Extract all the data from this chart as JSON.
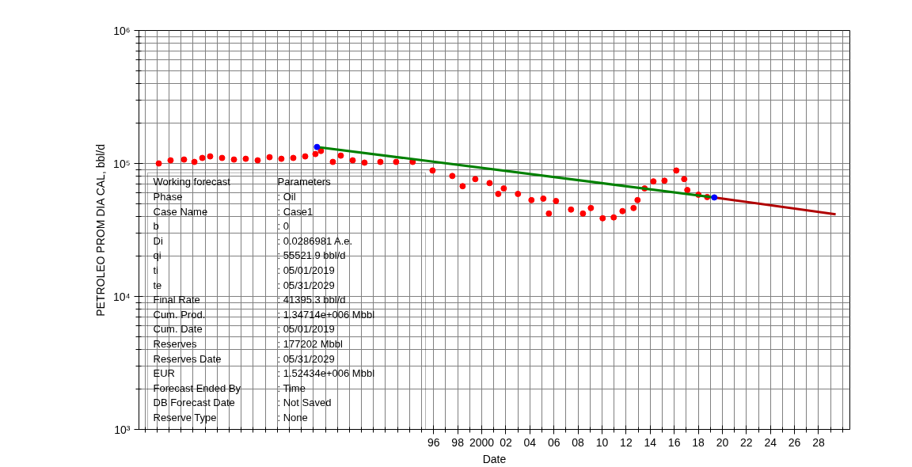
{
  "chart_data": {
    "type": "scatter",
    "xlabel": "Date",
    "ylabel": "PETROLEO PROM DIA CAL, bbl/d",
    "log": "y",
    "grid": true,
    "xlim": [
      1971.5,
      2030.6
    ],
    "ylim": [
      1000,
      1000000
    ],
    "xticks": [
      {
        "value": 1996,
        "label": "96"
      },
      {
        "value": 1998,
        "label": "98"
      },
      {
        "value": 2000,
        "label": "2000"
      },
      {
        "value": 2002,
        "label": "02"
      },
      {
        "value": 2004,
        "label": "04"
      },
      {
        "value": 2006,
        "label": "06"
      },
      {
        "value": 2008,
        "label": "08"
      },
      {
        "value": 2010,
        "label": "10"
      },
      {
        "value": 2012,
        "label": "12"
      },
      {
        "value": 2014,
        "label": "14"
      },
      {
        "value": 2016,
        "label": "16"
      },
      {
        "value": 2018,
        "label": "18"
      },
      {
        "value": 2020,
        "label": "20"
      },
      {
        "value": 2022,
        "label": "22"
      },
      {
        "value": 2024,
        "label": "24"
      },
      {
        "value": 2026,
        "label": "26"
      },
      {
        "value": 2028,
        "label": "28"
      }
    ],
    "yticks": [
      {
        "value": 1000,
        "label": "10³"
      },
      {
        "value": 10000,
        "label": "10⁴"
      },
      {
        "value": 100000,
        "label": "10⁵"
      },
      {
        "value": 1000000,
        "label": "10⁶"
      }
    ],
    "series": [
      {
        "marker": "circle",
        "color": "#ff0000",
        "x": [
          1973.15,
          1974.13,
          1975.25,
          1976.11,
          1976.77,
          1977.42,
          1978.41,
          1979.4,
          1980.38,
          1981.37,
          1982.36,
          1983.34,
          1984.33,
          1985.32,
          1986.17,
          1986.63,
          1987.62,
          1988.28,
          1989.27,
          1990.25,
          1991.57,
          1992.88,
          1994.26,
          1995.91,
          1997.55,
          1998.41,
          1999.46,
          2000.65,
          2001.37,
          2001.83,
          2003.01,
          2004.13,
          2005.12,
          2005.58,
          2006.17,
          2007.42,
          2008.41,
          2009.07,
          2010.05,
          2010.97,
          2011.7,
          2012.62,
          2012.95,
          2013.54,
          2014.27,
          2015.19,
          2016.17,
          2016.83,
          2017.09,
          2018.01,
          2018.74
        ],
        "values": [
          100000,
          105500,
          107000,
          102700,
          110000,
          113000,
          110000,
          107000,
          108400,
          105500,
          111400,
          108400,
          110000,
          113000,
          117700,
          124200,
          102700,
          114500,
          105500,
          101400,
          102700,
          102700,
          102700,
          88500,
          80500,
          67500,
          76300,
          71200,
          59000,
          64900,
          59000,
          53000,
          54400,
          42000,
          52200,
          45000,
          42000,
          46200,
          38700,
          39300,
          43800,
          46200,
          53000,
          64900,
          73300,
          74200,
          88500,
          76300,
          63100,
          58200,
          55900
        ]
      },
      {
        "type": "line",
        "color": "#008000",
        "x": [
          1986.3,
          2019.33
        ],
        "values": [
          133000,
          55521.9
        ]
      },
      {
        "type": "line",
        "color": "#b00000",
        "x": [
          2019.33,
          2029.42
        ],
        "values": [
          55521.9,
          41395.3
        ]
      },
      {
        "marker": "circle",
        "color": "#0000ff",
        "x": [
          1986.3,
          2019.33
        ],
        "values": [
          133000,
          55521.9
        ]
      }
    ],
    "annotations": [
      "Working forecast",
      "Parameters",
      "Phase",
      ": Oil",
      "Case Name",
      ": Case1",
      "b",
      ": 0",
      "Di",
      ": 0.0286981 A.e.",
      "qi",
      ": 55521.9 bbl/d",
      "ti",
      ": 05/01/2019",
      "te",
      ": 05/31/2029",
      "Final Rate",
      ": 41395.3 bbl/d",
      "Cum. Prod.",
      ": 1.34714e+006 Mbbl",
      "Cum. Date",
      ": 05/01/2019",
      "Reserves",
      ": 177202 Mbbl",
      "Reserves Date",
      ": 05/31/2029",
      "EUR",
      ": 1.52434e+006 Mbbl",
      "Forecast Ended By",
      ": Time",
      "DB Forecast Date",
      ": Not Saved",
      "Reserve Type",
      ": None"
    ]
  }
}
